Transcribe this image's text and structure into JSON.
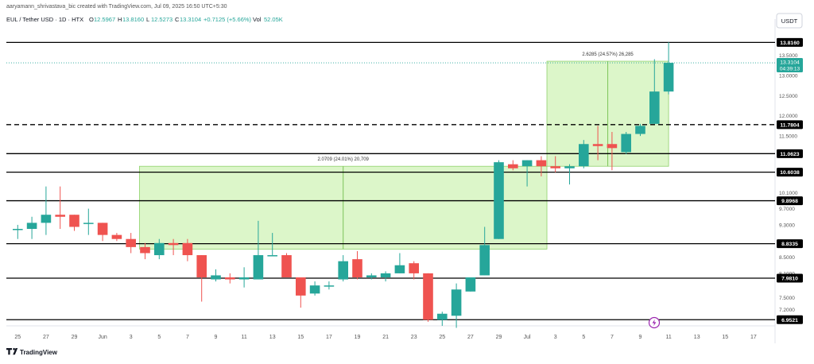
{
  "header": {
    "credit": "aaryamann_shrivastava_bic created with TradingView.com, Jul 09, 2025 16:50 UTC+5:30",
    "symbol": "EUL / Tether USD · 1D · HTX",
    "ohlc": [
      {
        "k": "O",
        "v": "12.5967"
      },
      {
        "k": "H",
        "v": "13.8160"
      },
      {
        "k": "L",
        "v": "12.5273"
      },
      {
        "k": "C",
        "v": "13.3104"
      }
    ],
    "change": "+0.7125 (+5.66%)",
    "vol_label": "Vol",
    "vol_value": "52.05K"
  },
  "currency": "USDT",
  "footer": {
    "brand": "TradingView",
    "logo": "tv-logo-icon"
  },
  "colors": {
    "up": "#26a69a",
    "down": "#ef5350",
    "box_fill": "#d6f5c0",
    "box_stroke": "#8fd16b",
    "line": "#000000",
    "last_price_badge": "#26a69a",
    "flag": "#9c27b0"
  },
  "chart_data": {
    "type": "candlestick",
    "y_scale": [
      6.8,
      14.0
    ],
    "y_ticks": [
      "13.5000",
      "13.0000",
      "12.5000",
      "12.0000",
      "11.5000",
      "10.1000",
      "9.7000",
      "9.3000",
      "8.5000",
      "8.1000",
      "7.5000",
      "7.2000"
    ],
    "x_ticks": [
      "25",
      "27",
      "29",
      "Jun",
      "3",
      "5",
      "7",
      "9",
      "11",
      "13",
      "15",
      "17",
      "19",
      "21",
      "23",
      "25",
      "27",
      "29",
      "Jul",
      "3",
      "5",
      "7",
      "9",
      "11",
      "13",
      "15",
      "17"
    ],
    "candles": [
      {
        "o": 9.2,
        "h": 9.3,
        "l": 8.95,
        "c": 9.2
      },
      {
        "o": 9.2,
        "h": 9.5,
        "l": 8.95,
        "c": 9.35
      },
      {
        "o": 9.35,
        "h": 10.25,
        "l": 9.05,
        "c": 9.55
      },
      {
        "o": 9.55,
        "h": 10.25,
        "l": 9.2,
        "c": 9.5
      },
      {
        "o": 9.55,
        "h": 9.55,
        "l": 9.15,
        "c": 9.25
      },
      {
        "o": 9.35,
        "h": 9.7,
        "l": 9.05,
        "c": 9.35
      },
      {
        "o": 9.35,
        "h": 9.35,
        "l": 8.9,
        "c": 9.05
      },
      {
        "o": 9.05,
        "h": 9.1,
        "l": 8.9,
        "c": 8.95
      },
      {
        "o": 8.95,
        "h": 9.1,
        "l": 8.6,
        "c": 8.75
      },
      {
        "o": 8.75,
        "h": 8.85,
        "l": 8.45,
        "c": 8.6
      },
      {
        "o": 8.55,
        "h": 8.95,
        "l": 8.45,
        "c": 8.85
      },
      {
        "o": 8.85,
        "h": 8.95,
        "l": 8.55,
        "c": 8.8
      },
      {
        "o": 8.85,
        "h": 8.95,
        "l": 8.4,
        "c": 8.55
      },
      {
        "o": 8.55,
        "h": 8.55,
        "l": 7.4,
        "c": 8.0
      },
      {
        "o": 7.95,
        "h": 8.2,
        "l": 7.9,
        "c": 8.05
      },
      {
        "o": 8.0,
        "h": 8.1,
        "l": 7.85,
        "c": 7.95
      },
      {
        "o": 7.95,
        "h": 8.25,
        "l": 7.75,
        "c": 8.0
      },
      {
        "o": 7.95,
        "h": 9.4,
        "l": 7.95,
        "c": 8.55
      },
      {
        "o": 8.55,
        "h": 9.1,
        "l": 8.55,
        "c": 8.55
      },
      {
        "o": 8.55,
        "h": 8.6,
        "l": 8.0,
        "c": 8.0
      },
      {
        "o": 8.0,
        "h": 8.0,
        "l": 7.25,
        "c": 7.55
      },
      {
        "o": 7.6,
        "h": 7.9,
        "l": 7.55,
        "c": 7.8
      },
      {
        "o": 7.8,
        "h": 7.9,
        "l": 7.7,
        "c": 7.8
      },
      {
        "o": 7.95,
        "h": 8.55,
        "l": 7.9,
        "c": 8.4
      },
      {
        "o": 8.45,
        "h": 8.65,
        "l": 7.95,
        "c": 8.0
      },
      {
        "o": 8.0,
        "h": 8.1,
        "l": 7.95,
        "c": 8.05
      },
      {
        "o": 8.0,
        "h": 8.15,
        "l": 7.9,
        "c": 8.1
      },
      {
        "o": 8.1,
        "h": 8.6,
        "l": 8.1,
        "c": 8.3
      },
      {
        "o": 8.35,
        "h": 8.4,
        "l": 7.95,
        "c": 8.1
      },
      {
        "o": 8.1,
        "h": 8.1,
        "l": 6.9,
        "c": 6.95
      },
      {
        "o": 6.95,
        "h": 7.15,
        "l": 6.8,
        "c": 7.1
      },
      {
        "o": 7.05,
        "h": 7.85,
        "l": 6.75,
        "c": 7.7
      },
      {
        "o": 7.65,
        "h": 8.0,
        "l": 7.65,
        "c": 8.0
      },
      {
        "o": 8.05,
        "h": 9.25,
        "l": 8.05,
        "c": 8.8
      },
      {
        "o": 8.95,
        "h": 10.9,
        "l": 8.95,
        "c": 10.85
      },
      {
        "o": 10.8,
        "h": 10.9,
        "l": 10.65,
        "c": 10.7
      },
      {
        "o": 10.75,
        "h": 10.9,
        "l": 10.25,
        "c": 10.9
      },
      {
        "o": 10.9,
        "h": 11.0,
        "l": 10.5,
        "c": 10.75
      },
      {
        "o": 10.75,
        "h": 11.0,
        "l": 10.6,
        "c": 10.7
      },
      {
        "o": 10.7,
        "h": 10.8,
        "l": 10.3,
        "c": 10.75
      },
      {
        "o": 10.75,
        "h": 11.4,
        "l": 10.7,
        "c": 11.3
      },
      {
        "o": 11.3,
        "h": 11.75,
        "l": 10.9,
        "c": 11.25
      },
      {
        "o": 11.3,
        "h": 11.6,
        "l": 10.65,
        "c": 11.2
      },
      {
        "o": 11.1,
        "h": 11.6,
        "l": 11.05,
        "c": 11.55
      },
      {
        "o": 11.55,
        "h": 11.8,
        "l": 11.5,
        "c": 11.75
      },
      {
        "o": 11.8,
        "h": 13.4,
        "l": 11.8,
        "c": 12.6
      },
      {
        "o": 12.6,
        "h": 13.82,
        "l": 12.53,
        "c": 13.31
      }
    ],
    "levels": [
      {
        "value": 13.816,
        "label": "13.8160",
        "style": "solid"
      },
      {
        "value": 11.7804,
        "label": "11.7804",
        "style": "dashed"
      },
      {
        "value": 11.0623,
        "label": "11.0623",
        "style": "solid"
      },
      {
        "value": 10.6038,
        "label": "10.6038",
        "style": "solid"
      },
      {
        "value": 9.8968,
        "label": "9.8968",
        "style": "solid"
      },
      {
        "value": 8.8335,
        "label": "8.8335",
        "style": "solid"
      },
      {
        "value": 7.981,
        "label": "7.9810",
        "style": "solid"
      },
      {
        "value": 6.9521,
        "label": "6.9521",
        "style": "solid"
      }
    ],
    "last_price": {
      "value": "13.3104",
      "countdown": "04:39:13"
    },
    "ranges": [
      {
        "from_x": 8.6,
        "to_x": 37.4,
        "bottom": 8.7,
        "top": 10.75,
        "label": "2.0709 (24.01%) 20,709"
      },
      {
        "from_x": 37.4,
        "to_x": 46.0,
        "bottom": 10.75,
        "top": 13.35,
        "label": "2.6285 (24.57%) 26,285"
      }
    ]
  }
}
